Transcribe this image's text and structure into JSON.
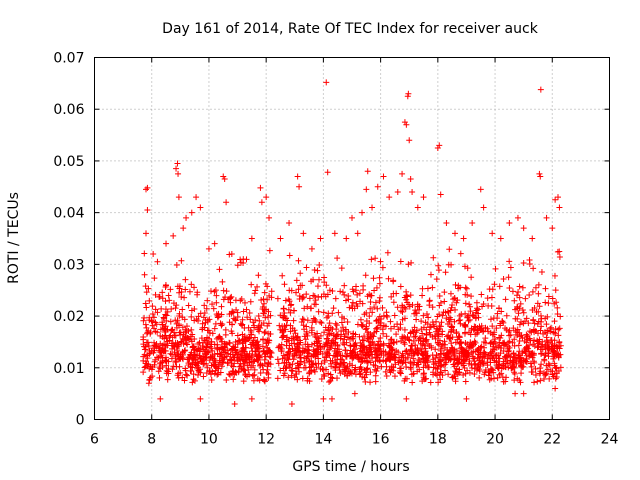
{
  "chart_data": {
    "type": "scatter",
    "title": "Day 161 of 2014, Rate Of TEC Index for receiver auck",
    "xlabel": "GPS time / hours",
    "ylabel": "ROTI / TECUs",
    "xlim": [
      6,
      24
    ],
    "ylim": [
      0,
      0.07
    ],
    "x_ticks": [
      6,
      8,
      10,
      12,
      14,
      16,
      18,
      20,
      22,
      24
    ],
    "y_ticks": [
      0,
      0.01,
      0.02,
      0.03,
      0.04,
      0.05,
      0.06,
      0.07
    ],
    "x_tick_labels": [
      "6",
      "8",
      "10",
      "12",
      "14",
      "16",
      "18",
      "20",
      "22",
      "24"
    ],
    "y_tick_labels": [
      "0",
      "0.01",
      "0.02",
      "0.03",
      "0.04",
      "0.05",
      "0.06",
      "0.07"
    ],
    "grid": true,
    "marker": "plus",
    "color": "#ff0000",
    "data_range_hours": [
      7.7,
      22.3
    ],
    "series": [
      {
        "name": "ROTI",
        "points": [
          [
            7.75,
            0.028
          ],
          [
            7.8,
            0.0445
          ],
          [
            7.85,
            0.0448
          ],
          [
            7.8,
            0.036
          ],
          [
            7.85,
            0.0405
          ],
          [
            8.05,
            0.032
          ],
          [
            8.2,
            0.0305
          ],
          [
            8.5,
            0.034
          ],
          [
            8.75,
            0.0355
          ],
          [
            8.85,
            0.0485
          ],
          [
            8.9,
            0.0495
          ],
          [
            8.92,
            0.0475
          ],
          [
            8.95,
            0.043
          ],
          [
            9.1,
            0.037
          ],
          [
            9.2,
            0.039
          ],
          [
            9.4,
            0.04
          ],
          [
            9.55,
            0.043
          ],
          [
            9.7,
            0.041
          ],
          [
            10.0,
            0.033
          ],
          [
            10.2,
            0.034
          ],
          [
            10.5,
            0.047
          ],
          [
            10.55,
            0.0465
          ],
          [
            10.6,
            0.042
          ],
          [
            10.8,
            0.032
          ],
          [
            11.2,
            0.031
          ],
          [
            11.5,
            0.035
          ],
          [
            11.8,
            0.0448
          ],
          [
            11.85,
            0.042
          ],
          [
            12.0,
            0.043
          ],
          [
            12.1,
            0.039
          ],
          [
            12.5,
            0.035
          ],
          [
            12.8,
            0.038
          ],
          [
            13.1,
            0.047
          ],
          [
            13.15,
            0.045
          ],
          [
            13.3,
            0.036
          ],
          [
            13.6,
            0.033
          ],
          [
            13.9,
            0.035
          ],
          [
            14.1,
            0.0652
          ],
          [
            14.15,
            0.0478
          ],
          [
            14.4,
            0.036
          ],
          [
            14.8,
            0.035
          ],
          [
            15.0,
            0.039
          ],
          [
            15.2,
            0.036
          ],
          [
            15.35,
            0.04
          ],
          [
            15.5,
            0.0445
          ],
          [
            15.55,
            0.048
          ],
          [
            15.7,
            0.041
          ],
          [
            15.9,
            0.045
          ],
          [
            16.1,
            0.047
          ],
          [
            16.3,
            0.043
          ],
          [
            16.6,
            0.044
          ],
          [
            16.75,
            0.0475
          ],
          [
            16.85,
            0.0575
          ],
          [
            16.9,
            0.057
          ],
          [
            16.95,
            0.0625
          ],
          [
            16.97,
            0.063
          ],
          [
            17.0,
            0.054
          ],
          [
            17.05,
            0.0465
          ],
          [
            17.1,
            0.044
          ],
          [
            17.3,
            0.041
          ],
          [
            17.5,
            0.043
          ],
          [
            18.0,
            0.0525
          ],
          [
            18.05,
            0.053
          ],
          [
            18.1,
            0.0435
          ],
          [
            18.3,
            0.038
          ],
          [
            18.6,
            0.036
          ],
          [
            18.9,
            0.035
          ],
          [
            19.2,
            0.038
          ],
          [
            19.5,
            0.0445
          ],
          [
            19.6,
            0.041
          ],
          [
            19.9,
            0.036
          ],
          [
            20.2,
            0.035
          ],
          [
            20.5,
            0.038
          ],
          [
            20.8,
            0.039
          ],
          [
            21.0,
            0.037
          ],
          [
            21.3,
            0.035
          ],
          [
            21.55,
            0.0475
          ],
          [
            21.58,
            0.047
          ],
          [
            21.6,
            0.0638
          ],
          [
            21.8,
            0.039
          ],
          [
            22.0,
            0.037
          ],
          [
            22.1,
            0.0425
          ],
          [
            22.2,
            0.043
          ],
          [
            22.25,
            0.041
          ],
          [
            8.3,
            0.004
          ],
          [
            9.7,
            0.004
          ],
          [
            10.9,
            0.003
          ],
          [
            14.0,
            0.004
          ],
          [
            14.3,
            0.004
          ],
          [
            15.1,
            0.005
          ],
          [
            16.9,
            0.004
          ],
          [
            19.0,
            0.004
          ],
          [
            20.7,
            0.005
          ],
          [
            21.0,
            0.005
          ],
          [
            22.1,
            0.006
          ],
          [
            12.9,
            0.003
          ],
          [
            7.9,
            0.007
          ],
          [
            11.5,
            0.004
          ]
        ]
      }
    ],
    "dense_band": {
      "description": "dense cloud of points between 7.7 and 22.3 hours",
      "x_range": [
        7.7,
        22.3
      ],
      "y_core_range": [
        0.005,
        0.025
      ],
      "gaps_hours": [
        [
          12.2,
          12.4
        ]
      ]
    }
  }
}
